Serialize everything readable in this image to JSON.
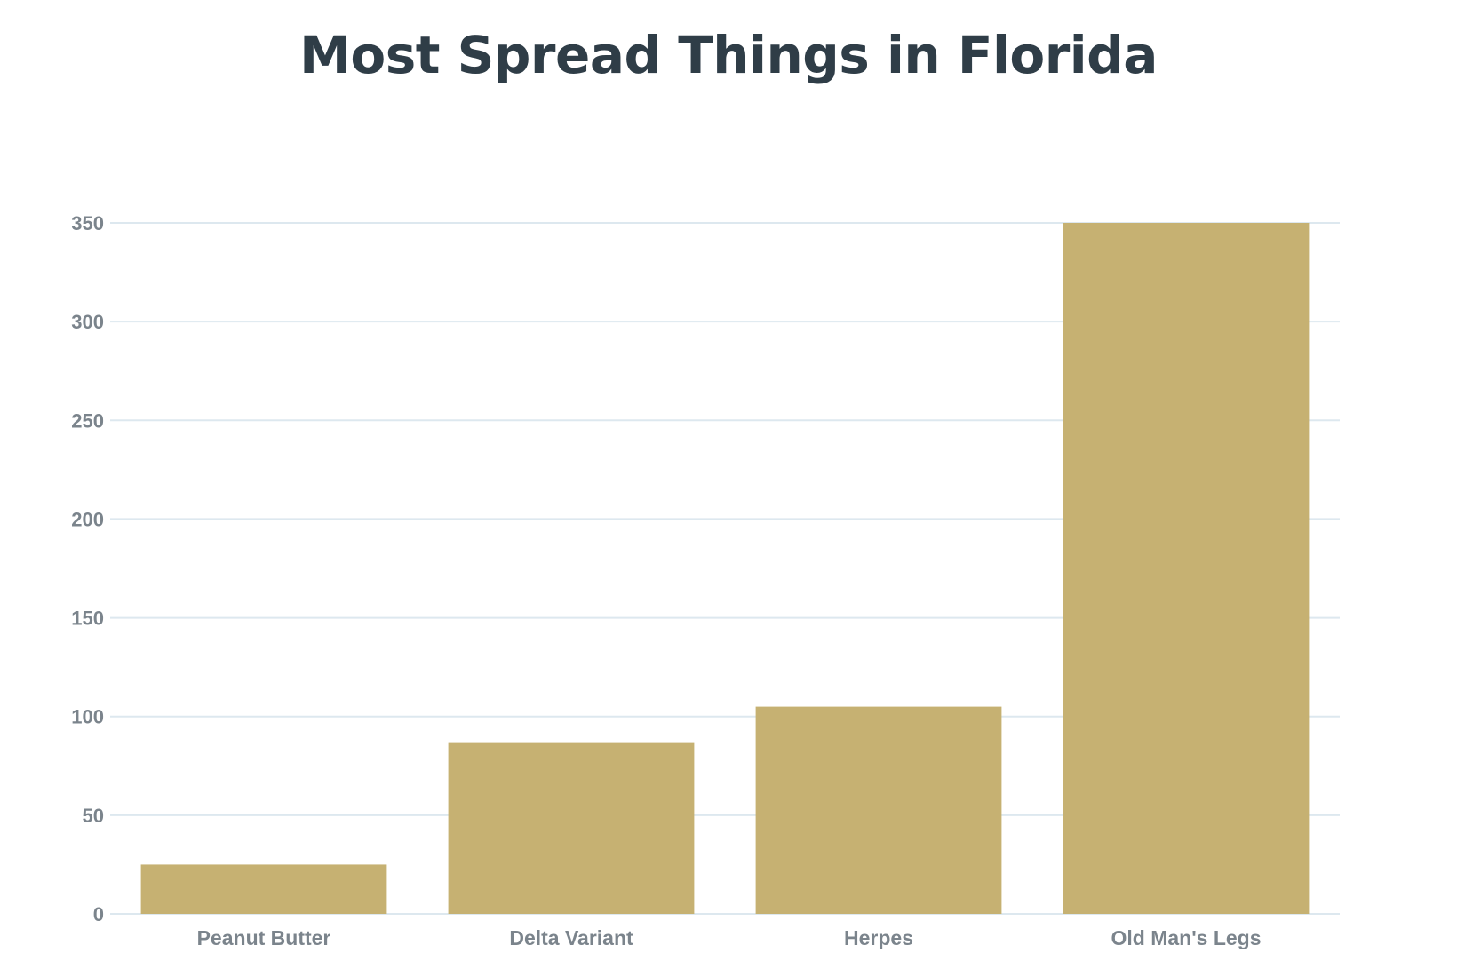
{
  "chart_data": {
    "type": "bar",
    "title": "Most Spread Things in Florida",
    "categories": [
      "Peanut Butter",
      "Delta Variant",
      "Herpes",
      "Old Man's Legs"
    ],
    "values": [
      25,
      87,
      105,
      350
    ],
    "xlabel": "",
    "ylabel": "",
    "ylim": [
      0,
      350
    ],
    "yticks": [
      "0",
      "50",
      "100",
      "150",
      "200",
      "250",
      "300",
      "350"
    ],
    "grid": true,
    "legend": "none",
    "colors": {
      "bar": "#c6b172",
      "grid": "#dde8ef",
      "title": "#2f3d47",
      "labels": "#7b848c"
    }
  }
}
